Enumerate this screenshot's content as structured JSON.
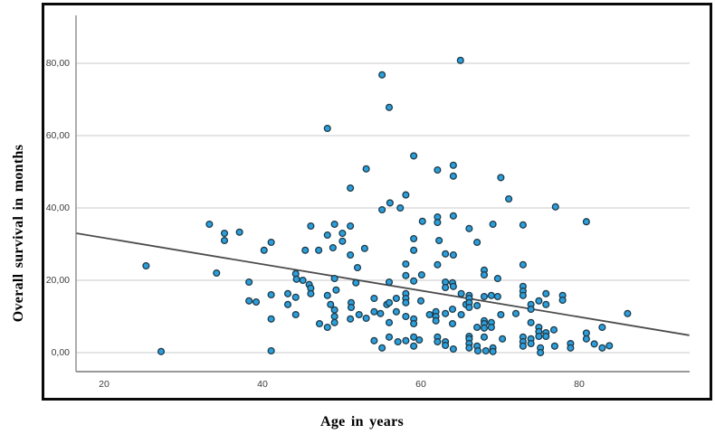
{
  "chart_data": {
    "type": "scatter",
    "title": "",
    "xlabel": "Age in years",
    "ylabel": "Overall survival in months",
    "x_ticks": [
      20,
      40,
      60,
      80
    ],
    "x_tick_labels": [
      "20",
      "40",
      "60",
      "80"
    ],
    "y_ticks": [
      0,
      20,
      40,
      60,
      80
    ],
    "y_tick_labels": [
      "0,00",
      "20,00",
      "40,00",
      "60,00",
      "80,00"
    ],
    "xlim": [
      16.5,
      93.9
    ],
    "ylim": [
      -5.3,
      93.0
    ],
    "grid": "horizontal-only",
    "legend": "none",
    "trend_line": {
      "x1": 16.5,
      "y1": 33.0,
      "x2": 93.9,
      "y2": 4.8
    },
    "colors": {
      "point_fill": "#2B9FDC",
      "point_stroke": "#1E3947",
      "trend_line": "#4D4D4D",
      "gridline": "#DCDCDC",
      "axis_line": "#999999",
      "figure_border": "#0A0A0A",
      "tick_text": "#3C3C3C"
    },
    "points": [
      [
        55.1,
        76.8
      ],
      [
        65,
        80.8
      ],
      [
        56,
        67.8
      ],
      [
        48.2,
        62
      ],
      [
        53.1,
        50.8
      ],
      [
        51.1,
        45.5
      ],
      [
        59.1,
        54.4
      ],
      [
        62.1,
        50.5
      ],
      [
        64.1,
        51.8
      ],
      [
        64.1,
        48.8
      ],
      [
        70.1,
        48.4
      ],
      [
        58.1,
        43.6
      ],
      [
        71.1,
        42.5
      ],
      [
        56.1,
        41.4
      ],
      [
        57.4,
        40
      ],
      [
        77,
        40.3
      ],
      [
        55.1,
        39.5
      ],
      [
        60.2,
        36.3
      ],
      [
        62.1,
        37.5
      ],
      [
        62.1,
        36
      ],
      [
        64.1,
        37.8
      ],
      [
        80.9,
        36.2
      ],
      [
        66.1,
        34.3
      ],
      [
        69.1,
        35.5
      ],
      [
        72.9,
        35.3
      ],
      [
        33.3,
        35.5
      ],
      [
        46.1,
        35
      ],
      [
        49.1,
        35.5
      ],
      [
        51.1,
        35
      ],
      [
        35.2,
        33
      ],
      [
        35.2,
        31
      ],
      [
        37.1,
        33.3
      ],
      [
        48.2,
        32.5
      ],
      [
        50.1,
        33
      ],
      [
        50.1,
        30.8
      ],
      [
        40.2,
        28.3
      ],
      [
        41.1,
        30.5
      ],
      [
        45.4,
        28.3
      ],
      [
        47.1,
        28.3
      ],
      [
        48.9,
        29
      ],
      [
        51.1,
        27
      ],
      [
        52.9,
        28.8
      ],
      [
        59.1,
        31.5
      ],
      [
        59.1,
        28.3
      ],
      [
        62.3,
        31
      ],
      [
        67.1,
        30.5
      ],
      [
        63.1,
        27.3
      ],
      [
        64.1,
        27
      ],
      [
        25.3,
        24
      ],
      [
        34.2,
        22
      ],
      [
        52,
        23.5
      ],
      [
        44.2,
        21.8
      ],
      [
        45.1,
        20
      ],
      [
        49.1,
        20.5
      ],
      [
        58.1,
        24.5
      ],
      [
        62.1,
        24.3
      ],
      [
        72.9,
        24.3
      ],
      [
        58.1,
        21.3
      ],
      [
        60.1,
        21.5
      ],
      [
        59.1,
        19.8
      ],
      [
        68,
        22.8
      ],
      [
        68,
        21.5
      ],
      [
        69.7,
        20.5
      ],
      [
        63.1,
        19.5
      ],
      [
        64,
        19.3
      ],
      [
        56,
        19.5
      ],
      [
        38.3,
        19.5
      ],
      [
        44.3,
        20.3
      ],
      [
        45.9,
        18.8
      ],
      [
        46.1,
        17.8
      ],
      [
        49.3,
        17.3
      ],
      [
        51.8,
        19.3
      ],
      [
        38.3,
        14.3
      ],
      [
        39.2,
        14
      ],
      [
        41.1,
        16
      ],
      [
        43.2,
        16.3
      ],
      [
        43.2,
        13.3
      ],
      [
        44.2,
        15.3
      ],
      [
        44.2,
        10.5
      ],
      [
        41.1,
        9.3
      ],
      [
        46.1,
        16.3
      ],
      [
        48.2,
        15.8
      ],
      [
        48.6,
        13.3
      ],
      [
        49.1,
        11.8
      ],
      [
        49.1,
        10
      ],
      [
        47.2,
        8
      ],
      [
        48.2,
        7
      ],
      [
        49.1,
        8.3
      ],
      [
        51.1,
        9.3
      ],
      [
        51.2,
        13.8
      ],
      [
        51.2,
        12.5
      ],
      [
        52.2,
        10.5
      ],
      [
        53.1,
        9.5
      ],
      [
        54.1,
        15
      ],
      [
        54.1,
        11.3
      ],
      [
        54.9,
        10.8
      ],
      [
        55.7,
        13.3
      ],
      [
        54.1,
        3.3
      ],
      [
        55.1,
        1.3
      ],
      [
        27.2,
        0.3
      ],
      [
        41.1,
        0.5
      ],
      [
        72.9,
        18.3
      ],
      [
        72.9,
        17
      ],
      [
        72.9,
        15.8
      ],
      [
        56,
        13.8
      ],
      [
        56.9,
        15
      ],
      [
        56.9,
        11.3
      ],
      [
        58.1,
        16.3
      ],
      [
        58.1,
        15
      ],
      [
        58.1,
        13.8
      ],
      [
        58.1,
        10
      ],
      [
        59.1,
        9.3
      ],
      [
        59.1,
        8
      ],
      [
        60,
        14.3
      ],
      [
        61.1,
        10.5
      ],
      [
        61.9,
        11.3
      ],
      [
        61.9,
        10
      ],
      [
        61.9,
        8.8
      ],
      [
        63.1,
        18
      ],
      [
        63.1,
        10.8
      ],
      [
        64,
        12
      ],
      [
        64,
        8
      ],
      [
        64.1,
        18.3
      ],
      [
        65.1,
        16.3
      ],
      [
        65.1,
        10.5
      ],
      [
        65.7,
        13.3
      ],
      [
        66.1,
        15.8
      ],
      [
        66.1,
        15
      ],
      [
        66.1,
        13.8
      ],
      [
        66.1,
        12.5
      ],
      [
        67.1,
        13
      ],
      [
        67.1,
        7
      ],
      [
        68,
        15.5
      ],
      [
        68,
        8.8
      ],
      [
        68,
        8
      ],
      [
        68,
        6.8
      ],
      [
        68.9,
        15.8
      ],
      [
        68.9,
        8.3
      ],
      [
        68.9,
        7
      ],
      [
        69.7,
        15.5
      ],
      [
        70.1,
        10.5
      ],
      [
        72,
        10.8
      ],
      [
        73.9,
        13.3
      ],
      [
        73.9,
        12
      ],
      [
        73.9,
        8.3
      ],
      [
        74.9,
        14.3
      ],
      [
        74.9,
        7
      ],
      [
        74.9,
        5.8
      ],
      [
        75.8,
        16.3
      ],
      [
        75.8,
        13.3
      ],
      [
        76.8,
        6.3
      ],
      [
        77.9,
        15.8
      ],
      [
        77.9,
        14.5
      ],
      [
        80.9,
        5.4
      ],
      [
        82.9,
        7
      ],
      [
        86.1,
        10.8
      ],
      [
        56,
        8.3
      ],
      [
        56,
        4.3
      ],
      [
        57.1,
        3
      ],
      [
        58.1,
        3.3
      ],
      [
        59.1,
        4.3
      ],
      [
        59.1,
        1.8
      ],
      [
        59.8,
        3.5
      ],
      [
        62.1,
        4.3
      ],
      [
        62.1,
        3
      ],
      [
        63.1,
        3
      ],
      [
        63.1,
        2
      ],
      [
        64.1,
        1
      ],
      [
        66.1,
        4.5
      ],
      [
        66.1,
        3.8
      ],
      [
        66.1,
        2.5
      ],
      [
        66.1,
        1.3
      ],
      [
        67.1,
        1.8
      ],
      [
        67.2,
        0.5
      ],
      [
        68,
        4.3
      ],
      [
        68.2,
        0.5
      ],
      [
        69.1,
        1.3
      ],
      [
        69.1,
        0.3
      ],
      [
        70.3,
        3.8
      ],
      [
        72.9,
        4.3
      ],
      [
        72.9,
        3
      ],
      [
        72.9,
        1.8
      ],
      [
        73.9,
        3.8
      ],
      [
        73.9,
        2.5
      ],
      [
        74.9,
        4.5
      ],
      [
        75.1,
        1.3
      ],
      [
        75.1,
        0
      ],
      [
        75.8,
        5.5
      ],
      [
        75.8,
        4.5
      ],
      [
        76.9,
        1.8
      ],
      [
        78.9,
        2.5
      ],
      [
        78.9,
        1.3
      ],
      [
        80.9,
        3.8
      ],
      [
        81.9,
        2.4
      ],
      [
        82.9,
        1.3
      ],
      [
        83.8,
        1.9
      ]
    ]
  }
}
